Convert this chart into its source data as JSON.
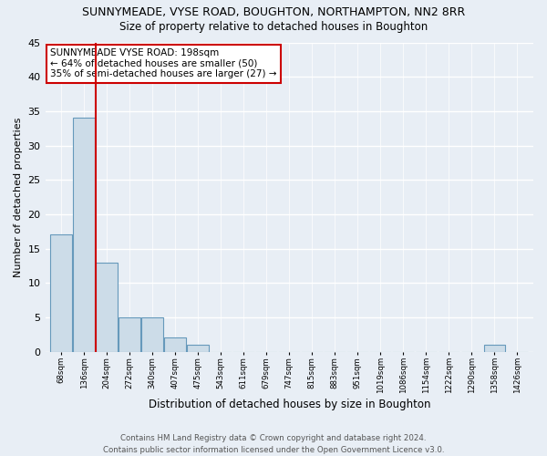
{
  "title": "SUNNYMEADE, VYSE ROAD, BOUGHTON, NORTHAMPTON, NN2 8RR",
  "subtitle": "Size of property relative to detached houses in Boughton",
  "xlabel": "Distribution of detached houses by size in Boughton",
  "ylabel": "Number of detached properties",
  "bin_labels": [
    "68sqm",
    "136sqm",
    "204sqm",
    "272sqm",
    "340sqm",
    "407sqm",
    "475sqm",
    "543sqm",
    "611sqm",
    "679sqm",
    "747sqm",
    "815sqm",
    "883sqm",
    "951sqm",
    "1019sqm",
    "1086sqm",
    "1154sqm",
    "1222sqm",
    "1290sqm",
    "1358sqm",
    "1426sqm"
  ],
  "bar_heights": [
    17,
    34,
    13,
    5,
    5,
    2,
    1,
    0,
    0,
    0,
    0,
    0,
    0,
    0,
    0,
    0,
    0,
    0,
    0,
    1,
    0
  ],
  "bar_color": "#ccdce8",
  "bar_edge_color": "#6699bb",
  "annotation_text_line1": "SUNNYMEADE VYSE ROAD: 198sqm",
  "annotation_text_line2": "← 64% of detached houses are smaller (50)",
  "annotation_text_line3": "35% of semi-detached houses are larger (27) →",
  "annotation_box_color": "#ffffff",
  "annotation_box_edge_color": "#cc0000",
  "vline_color": "#cc0000",
  "footer_line1": "Contains HM Land Registry data © Crown copyright and database right 2024.",
  "footer_line2": "Contains public sector information licensed under the Open Government Licence v3.0.",
  "ylim": [
    0,
    45
  ],
  "yticks": [
    0,
    5,
    10,
    15,
    20,
    25,
    30,
    35,
    40,
    45
  ],
  "bg_color": "#e8eef5",
  "grid_color": "#ffffff",
  "title_fontsize": 9,
  "subtitle_fontsize": 8.5,
  "vline_bin_index": 2
}
